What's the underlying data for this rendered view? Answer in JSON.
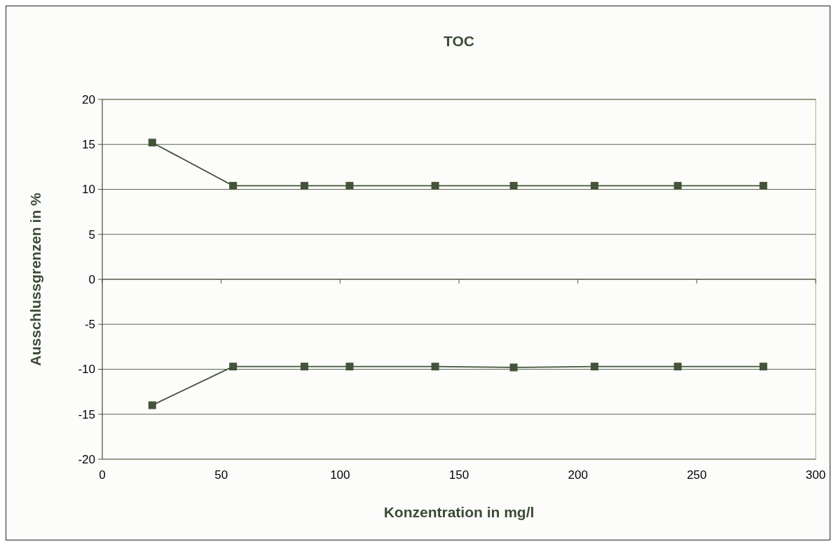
{
  "chart_data": {
    "type": "line",
    "title": "TOC",
    "xlabel": "Konzentration in mg/l",
    "ylabel": "Ausschlussgrenzen in %",
    "series": [
      {
        "color": "#435439",
        "x": [
          21,
          55,
          85,
          104,
          140,
          173,
          207,
          242,
          278
        ],
        "values": [
          15.2,
          10.4,
          10.4,
          10.4,
          10.4,
          10.4,
          10.4,
          10.4,
          10.4
        ]
      },
      {
        "color": "#435439",
        "x": [
          21,
          55,
          85,
          104,
          140,
          173,
          207,
          242,
          278
        ],
        "values": [
          -14,
          -9.7,
          -9.7,
          -9.7,
          -9.7,
          -9.8,
          -9.7,
          -9.7,
          -9.7
        ]
      }
    ],
    "xlim": [
      0,
      300
    ],
    "xticks": [
      0,
      50,
      100,
      150,
      200,
      250,
      300
    ],
    "ylim": [
      -20,
      20
    ],
    "yticks": [
      -20,
      -15,
      -10,
      -5,
      0,
      5,
      10,
      15,
      20
    ],
    "grid": "y",
    "marker": "square",
    "line_style": "solid"
  }
}
